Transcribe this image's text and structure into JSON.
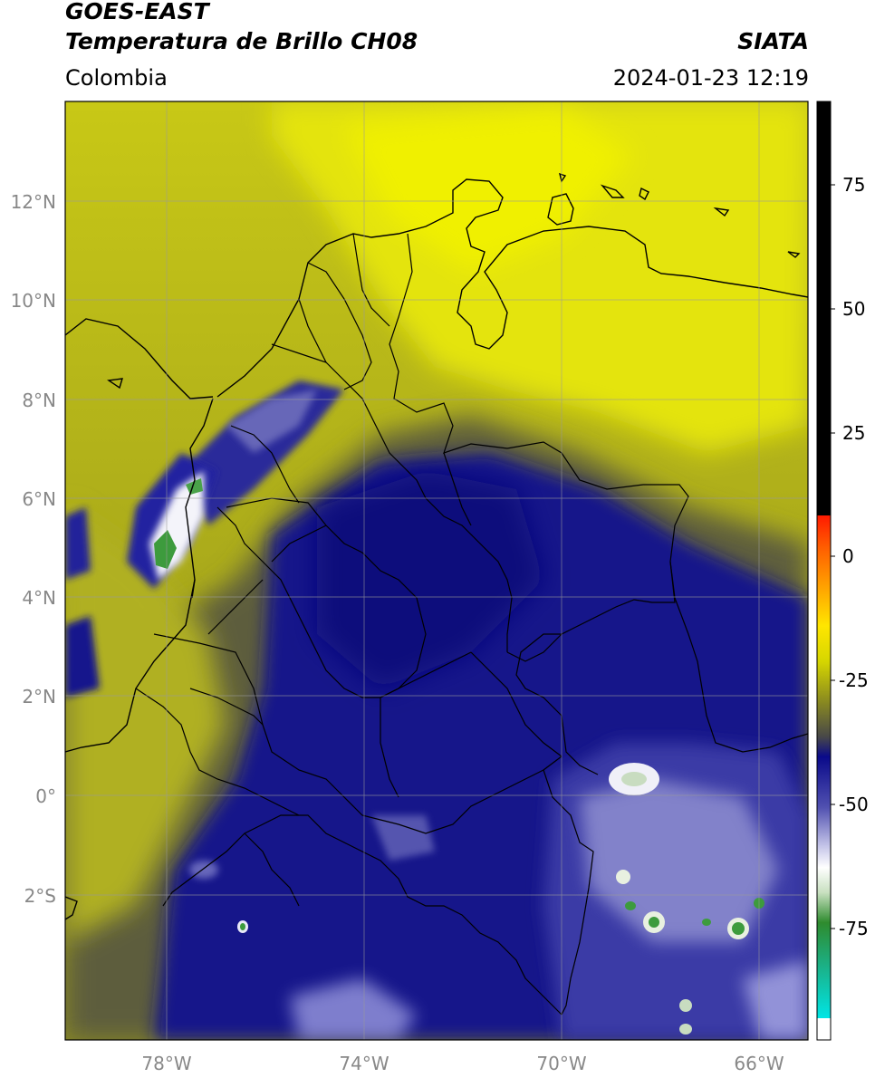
{
  "header": {
    "satellite": "GOES-EAST",
    "product": "Temperatura de Brillo CH08",
    "brand": "SIATA",
    "region": "Colombia",
    "timestamp": "2024-01-23 12:19"
  },
  "map": {
    "lat_labels": [
      "12°N",
      "10°N",
      "8°N",
      "6°N",
      "4°N",
      "2°N",
      "0°",
      "2°S"
    ],
    "lon_labels": [
      "78°W",
      "74°W",
      "70°W",
      "66°W"
    ],
    "lon_extent": [
      -80,
      -65
    ],
    "lat_extent": [
      -5,
      14
    ]
  },
  "colorbar": {
    "ticks": [
      "75",
      "50",
      "25",
      "0",
      "-25",
      "-50",
      "-75"
    ],
    "colors": {
      "black": "#000000",
      "red": "#ff1a00",
      "orange": "#ff8c00",
      "yellow": "#ffff00",
      "olive": "#8a8a20",
      "navy": "#0a0a8a",
      "white": "#ffffff",
      "green": "#2e8b2e",
      "cyan": "#00e5e5"
    }
  }
}
